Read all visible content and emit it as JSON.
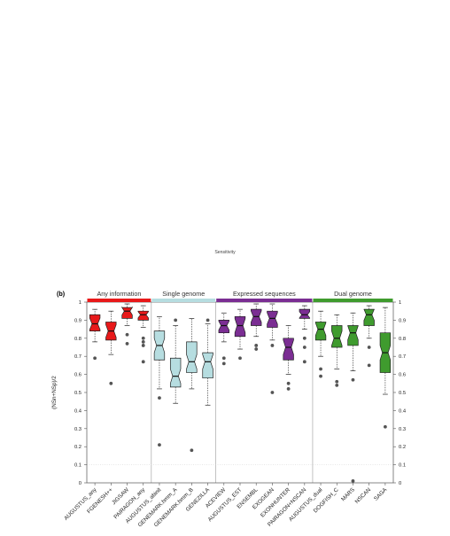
{
  "chart_data": {
    "type": "box",
    "title": "Sensitivity",
    "panel_label": "(b)",
    "ylabel": "(NSn+NSp)/2",
    "ylim": [
      0,
      1
    ],
    "yticks": [
      "0",
      "0.1",
      "0.2",
      "0.3",
      "0.4",
      "0.5",
      "0.6",
      "0.7",
      "0.8",
      "0.9",
      "1"
    ],
    "groups": [
      {
        "name": "Any information",
        "color": "#e8191a",
        "start": 0,
        "end": 4
      },
      {
        "name": "Single genome",
        "color": "#b6dde0",
        "start": 4,
        "end": 8
      },
      {
        "name": "Expressed sequences",
        "color": "#7b2e93",
        "start": 8,
        "end": 14
      },
      {
        "name": "Dual genome",
        "color": "#3f9b2e",
        "start": 14,
        "end": 19
      }
    ],
    "categories": [
      "AUGUSTUS_any",
      "FGENESH++",
      "JIGSAW",
      "PAIRAGON_any",
      "AUGUSTUS_abinit",
      "GENEMARK.hmm_A",
      "GENEMARK.hmm_B",
      "GENEZILLA",
      "ACEVIEW",
      "AUGUSTUS_EST",
      "ENSEMBL",
      "EXOGEAN",
      "EXONHUNTER",
      "PAIRAGON+NSCAN",
      "AUGUSTUS_dual",
      "DOGFISH_C",
      "MARS",
      "NSCAN",
      "SAGA"
    ],
    "boxes": [
      {
        "q1": 0.84,
        "median": 0.88,
        "q3": 0.93,
        "low": 0.78,
        "high": 0.96,
        "outliers": [
          0.69
        ]
      },
      {
        "q1": 0.79,
        "median": 0.84,
        "q3": 0.89,
        "low": 0.71,
        "high": 0.95,
        "outliers": [
          0.55
        ]
      },
      {
        "q1": 0.91,
        "median": 0.95,
        "q3": 0.97,
        "low": 0.87,
        "high": 0.99,
        "outliers": [
          0.82,
          0.77
        ]
      },
      {
        "q1": 0.9,
        "median": 0.93,
        "q3": 0.95,
        "low": 0.86,
        "high": 0.98,
        "outliers": [
          0.8,
          0.78,
          0.76,
          0.67
        ]
      },
      {
        "q1": 0.68,
        "median": 0.76,
        "q3": 0.84,
        "low": 0.52,
        "high": 0.92,
        "outliers": [
          0.47,
          0.21
        ]
      },
      {
        "q1": 0.53,
        "median": 0.59,
        "q3": 0.69,
        "low": 0.44,
        "high": 0.87,
        "outliers": [
          0.9
        ]
      },
      {
        "q1": 0.61,
        "median": 0.67,
        "q3": 0.78,
        "low": 0.52,
        "high": 0.91,
        "outliers": [
          0.18
        ]
      },
      {
        "q1": 0.58,
        "median": 0.67,
        "q3": 0.72,
        "low": 0.43,
        "high": 0.88,
        "outliers": [
          0.9
        ]
      },
      {
        "q1": 0.83,
        "median": 0.87,
        "q3": 0.9,
        "low": 0.78,
        "high": 0.94,
        "outliers": [
          0.69,
          0.66
        ]
      },
      {
        "q1": 0.81,
        "median": 0.87,
        "q3": 0.92,
        "low": 0.74,
        "high": 0.96,
        "outliers": [
          0.69
        ]
      },
      {
        "q1": 0.87,
        "median": 0.92,
        "q3": 0.96,
        "low": 0.81,
        "high": 0.99,
        "outliers": [
          0.76,
          0.74
        ]
      },
      {
        "q1": 0.86,
        "median": 0.91,
        "q3": 0.95,
        "low": 0.79,
        "high": 0.99,
        "outliers": [
          0.76,
          0.5
        ]
      },
      {
        "q1": 0.68,
        "median": 0.75,
        "q3": 0.8,
        "low": 0.6,
        "high": 0.87,
        "outliers": [
          0.55,
          0.52
        ]
      },
      {
        "q1": 0.91,
        "median": 0.93,
        "q3": 0.96,
        "low": 0.85,
        "high": 0.98,
        "outliers": [
          0.8,
          0.75,
          0.67
        ]
      },
      {
        "q1": 0.79,
        "median": 0.85,
        "q3": 0.89,
        "low": 0.7,
        "high": 0.95,
        "outliers": [
          0.63,
          0.59
        ]
      },
      {
        "q1": 0.75,
        "median": 0.8,
        "q3": 0.87,
        "low": 0.63,
        "high": 0.93,
        "outliers": [
          0.56,
          0.54
        ]
      },
      {
        "q1": 0.76,
        "median": 0.83,
        "q3": 0.87,
        "low": 0.62,
        "high": 0.94,
        "outliers": [
          0.57,
          0.01
        ]
      },
      {
        "q1": 0.87,
        "median": 0.93,
        "q3": 0.96,
        "low": 0.8,
        "high": 0.98,
        "outliers": [
          0.75,
          0.65
        ]
      },
      {
        "q1": 0.61,
        "median": 0.72,
        "q3": 0.83,
        "low": 0.49,
        "high": 0.97,
        "outliers": [
          0.31
        ]
      }
    ],
    "grid": false
  }
}
